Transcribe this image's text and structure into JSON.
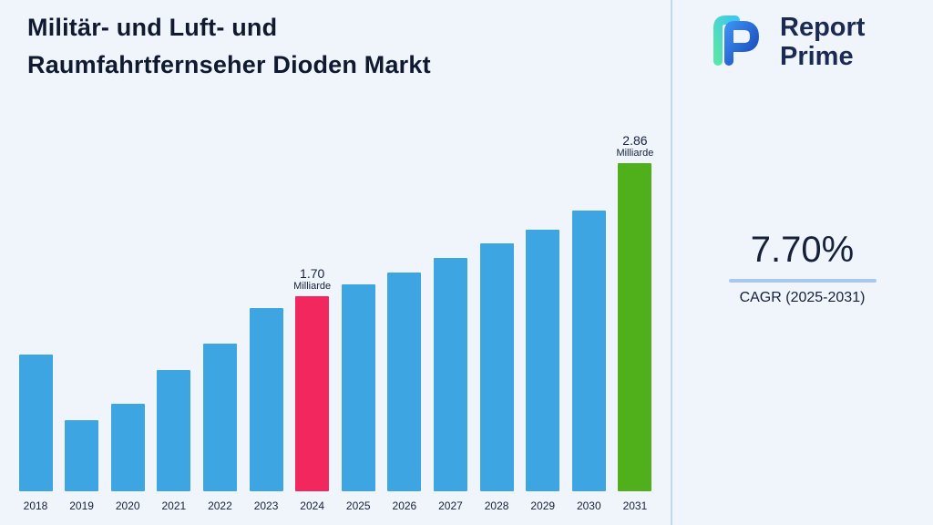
{
  "page": {
    "background": "#f0f5fb"
  },
  "header": {
    "title_lines": [
      "Militär- und Luft- und",
      "Raumfahrtfernseher Dioden Markt"
    ]
  },
  "brand": {
    "name_line1": "Report",
    "name_line2": "Prime",
    "logo_icon": "reportprime-logo-icon"
  },
  "stats": {
    "cagr_value": "7.70%",
    "cagr_label": "CAGR (2025-2031)",
    "underline_color": "#a9c9ec"
  },
  "chart_data": {
    "type": "bar",
    "title": "Militär- und Luft- und Raumfahrtfernseher Dioden Markt",
    "unit": "Milliarde",
    "xlabel": "",
    "ylabel": "",
    "ylim": [
      0,
      3
    ],
    "grid": false,
    "legend": false,
    "categories": [
      "2018",
      "2019",
      "2020",
      "2021",
      "2022",
      "2023",
      "2024",
      "2025",
      "2026",
      "2027",
      "2028",
      "2029",
      "2030",
      "2031"
    ],
    "values": [
      1.19,
      0.62,
      0.76,
      1.06,
      1.29,
      1.6,
      1.7,
      1.8,
      1.91,
      2.03,
      2.16,
      2.28,
      2.45,
      2.86
    ],
    "annotations": [
      {
        "year": "2024",
        "value_label": "1.70",
        "unit_label": "Milliarde"
      },
      {
        "year": "2031",
        "value_label": "2.86",
        "unit_label": "Milliarde"
      }
    ],
    "bar_colors": {
      "default": "#3da6e2",
      "2024": "#f2275e",
      "2031": "#4fb01c"
    }
  }
}
